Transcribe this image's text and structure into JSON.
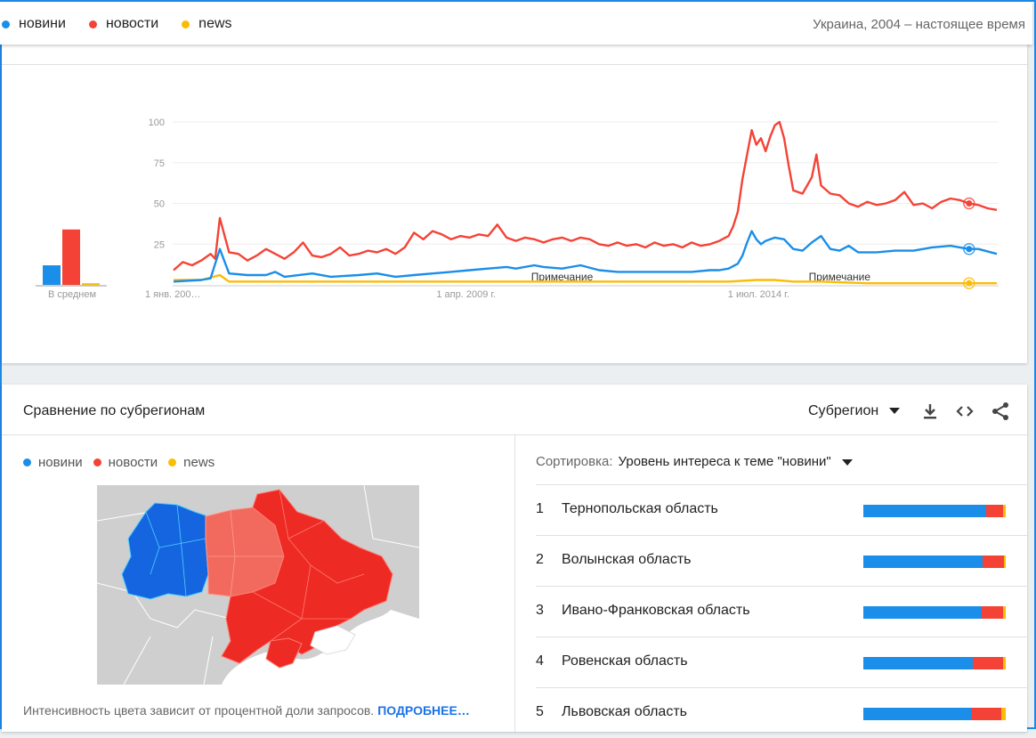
{
  "colors": {
    "blue": "#1a8ee8",
    "red": "#f44336",
    "yellow": "#fbbc04",
    "accent": "#1e88e5"
  },
  "terms": [
    {
      "label": "новини",
      "color": "#1a8ee8"
    },
    {
      "label": "новости",
      "color": "#f44336"
    },
    {
      "label": "news",
      "color": "#fbbc04"
    }
  ],
  "header": {
    "region_period": "Украина, 2004 – настоящее время"
  },
  "chart_data": {
    "type": "line",
    "average_bars": {
      "label": "В среднем",
      "values": [
        12,
        34,
        1
      ]
    },
    "x_tick_labels": [
      "1 янв. 200…",
      "1 апр. 2009 г.",
      "1 июл. 2014 г."
    ],
    "x_tick_months": [
      0,
      63,
      126
    ],
    "y_ticks": [
      100,
      75,
      50,
      25
    ],
    "ylim": [
      0,
      100
    ],
    "grid": true,
    "annotations": [
      {
        "label": "Примечание",
        "month": 84
      },
      {
        "label": "Примечание",
        "month": 144
      }
    ],
    "months": 178,
    "series": [
      {
        "name": "новини",
        "color": "#1a8ee8",
        "points": [
          [
            0,
            2
          ],
          [
            6,
            3
          ],
          [
            8,
            4
          ],
          [
            10,
            22
          ],
          [
            12,
            7
          ],
          [
            16,
            6
          ],
          [
            20,
            6
          ],
          [
            22,
            8
          ],
          [
            24,
            5
          ],
          [
            30,
            7
          ],
          [
            34,
            5
          ],
          [
            40,
            6
          ],
          [
            44,
            7
          ],
          [
            48,
            5
          ],
          [
            52,
            6
          ],
          [
            56,
            7
          ],
          [
            60,
            8
          ],
          [
            64,
            9
          ],
          [
            68,
            10
          ],
          [
            72,
            11
          ],
          [
            74,
            10
          ],
          [
            78,
            12
          ],
          [
            80,
            11
          ],
          [
            84,
            10
          ],
          [
            88,
            12
          ],
          [
            92,
            9
          ],
          [
            96,
            8
          ],
          [
            100,
            8
          ],
          [
            104,
            8
          ],
          [
            108,
            8
          ],
          [
            112,
            8
          ],
          [
            116,
            9
          ],
          [
            118,
            9
          ],
          [
            120,
            10
          ],
          [
            122,
            13
          ],
          [
            123,
            18
          ],
          [
            124,
            26
          ],
          [
            125,
            33
          ],
          [
            126,
            28
          ],
          [
            127,
            25
          ],
          [
            128,
            27
          ],
          [
            130,
            29
          ],
          [
            132,
            28
          ],
          [
            134,
            22
          ],
          [
            136,
            21
          ],
          [
            138,
            26
          ],
          [
            140,
            30
          ],
          [
            142,
            22
          ],
          [
            144,
            21
          ],
          [
            146,
            24
          ],
          [
            148,
            20
          ],
          [
            152,
            20
          ],
          [
            156,
            21
          ],
          [
            160,
            21
          ],
          [
            164,
            23
          ],
          [
            168,
            24
          ],
          [
            170,
            23
          ],
          [
            172,
            22
          ],
          [
            174,
            22
          ],
          [
            178,
            19
          ]
        ]
      },
      {
        "name": "новости",
        "color": "#f44336",
        "points": [
          [
            0,
            9
          ],
          [
            2,
            14
          ],
          [
            4,
            12
          ],
          [
            6,
            15
          ],
          [
            8,
            19
          ],
          [
            9,
            16
          ],
          [
            10,
            41
          ],
          [
            12,
            20
          ],
          [
            14,
            19
          ],
          [
            16,
            15
          ],
          [
            18,
            18
          ],
          [
            20,
            22
          ],
          [
            22,
            19
          ],
          [
            24,
            16
          ],
          [
            26,
            20
          ],
          [
            28,
            26
          ],
          [
            30,
            18
          ],
          [
            32,
            17
          ],
          [
            34,
            19
          ],
          [
            36,
            23
          ],
          [
            38,
            18
          ],
          [
            40,
            19
          ],
          [
            42,
            21
          ],
          [
            44,
            20
          ],
          [
            46,
            22
          ],
          [
            48,
            19
          ],
          [
            50,
            23
          ],
          [
            52,
            32
          ],
          [
            54,
            28
          ],
          [
            56,
            33
          ],
          [
            58,
            31
          ],
          [
            60,
            28
          ],
          [
            62,
            30
          ],
          [
            64,
            29
          ],
          [
            66,
            31
          ],
          [
            68,
            30
          ],
          [
            70,
            37
          ],
          [
            72,
            29
          ],
          [
            74,
            27
          ],
          [
            76,
            29
          ],
          [
            78,
            28
          ],
          [
            80,
            26
          ],
          [
            82,
            28
          ],
          [
            84,
            29
          ],
          [
            86,
            27
          ],
          [
            88,
            29
          ],
          [
            90,
            28
          ],
          [
            92,
            25
          ],
          [
            94,
            24
          ],
          [
            96,
            26
          ],
          [
            98,
            24
          ],
          [
            100,
            25
          ],
          [
            102,
            23
          ],
          [
            104,
            26
          ],
          [
            106,
            24
          ],
          [
            108,
            25
          ],
          [
            110,
            23
          ],
          [
            112,
            26
          ],
          [
            114,
            24
          ],
          [
            116,
            25
          ],
          [
            118,
            27
          ],
          [
            120,
            30
          ],
          [
            121,
            36
          ],
          [
            122,
            45
          ],
          [
            123,
            65
          ],
          [
            124,
            80
          ],
          [
            125,
            95
          ],
          [
            126,
            86
          ],
          [
            127,
            90
          ],
          [
            128,
            82
          ],
          [
            129,
            91
          ],
          [
            130,
            98
          ],
          [
            131,
            100
          ],
          [
            132,
            90
          ],
          [
            133,
            73
          ],
          [
            134,
            58
          ],
          [
            136,
            56
          ],
          [
            138,
            66
          ],
          [
            139,
            80
          ],
          [
            140,
            61
          ],
          [
            142,
            56
          ],
          [
            144,
            55
          ],
          [
            146,
            50
          ],
          [
            148,
            48
          ],
          [
            150,
            51
          ],
          [
            152,
            49
          ],
          [
            154,
            50
          ],
          [
            156,
            52
          ],
          [
            158,
            57
          ],
          [
            160,
            49
          ],
          [
            162,
            50
          ],
          [
            164,
            47
          ],
          [
            166,
            51
          ],
          [
            168,
            53
          ],
          [
            170,
            52
          ],
          [
            172,
            50
          ],
          [
            174,
            49
          ],
          [
            176,
            47
          ],
          [
            178,
            46
          ]
        ]
      },
      {
        "name": "news",
        "color": "#fbbc04",
        "points": [
          [
            0,
            3
          ],
          [
            6,
            3
          ],
          [
            10,
            6
          ],
          [
            12,
            2
          ],
          [
            20,
            2
          ],
          [
            30,
            2
          ],
          [
            40,
            2
          ],
          [
            50,
            2
          ],
          [
            60,
            2
          ],
          [
            70,
            2
          ],
          [
            80,
            2
          ],
          [
            90,
            2
          ],
          [
            100,
            2
          ],
          [
            110,
            2
          ],
          [
            120,
            2
          ],
          [
            126,
            3
          ],
          [
            130,
            3
          ],
          [
            134,
            2
          ],
          [
            140,
            2
          ],
          [
            150,
            1
          ],
          [
            160,
            1
          ],
          [
            170,
            1
          ],
          [
            178,
            1
          ]
        ]
      }
    ],
    "end_markers": {
      "month": 172
    }
  },
  "compare": {
    "title": "Сравнение по субрегионам",
    "granularity": "Субрегион",
    "download_icon": "download-icon",
    "embed_icon": "embed-code-icon",
    "share_icon": "share-icon",
    "footnote": "Интенсивность цвета зависит от процентной доли запросов.",
    "more_link": "ПОДРОБНЕЕ…",
    "sort_label": "Сортировка:",
    "sort_value": "Уровень интереса к теме \"новини\"",
    "rows": [
      {
        "rank": "1",
        "name": "Тернопольская область",
        "blue": 0.86,
        "red": 0.12,
        "yellow": 0.02
      },
      {
        "rank": "2",
        "name": "Волынская область",
        "blue": 0.84,
        "red": 0.15,
        "yellow": 0.01
      },
      {
        "rank": "3",
        "name": "Ивано-Франковская область",
        "blue": 0.83,
        "red": 0.15,
        "yellow": 0.02
      },
      {
        "rank": "4",
        "name": "Ровенская область",
        "blue": 0.77,
        "red": 0.21,
        "yellow": 0.02
      },
      {
        "rank": "5",
        "name": "Львовская область",
        "blue": 0.76,
        "red": 0.21,
        "yellow": 0.03
      }
    ]
  }
}
